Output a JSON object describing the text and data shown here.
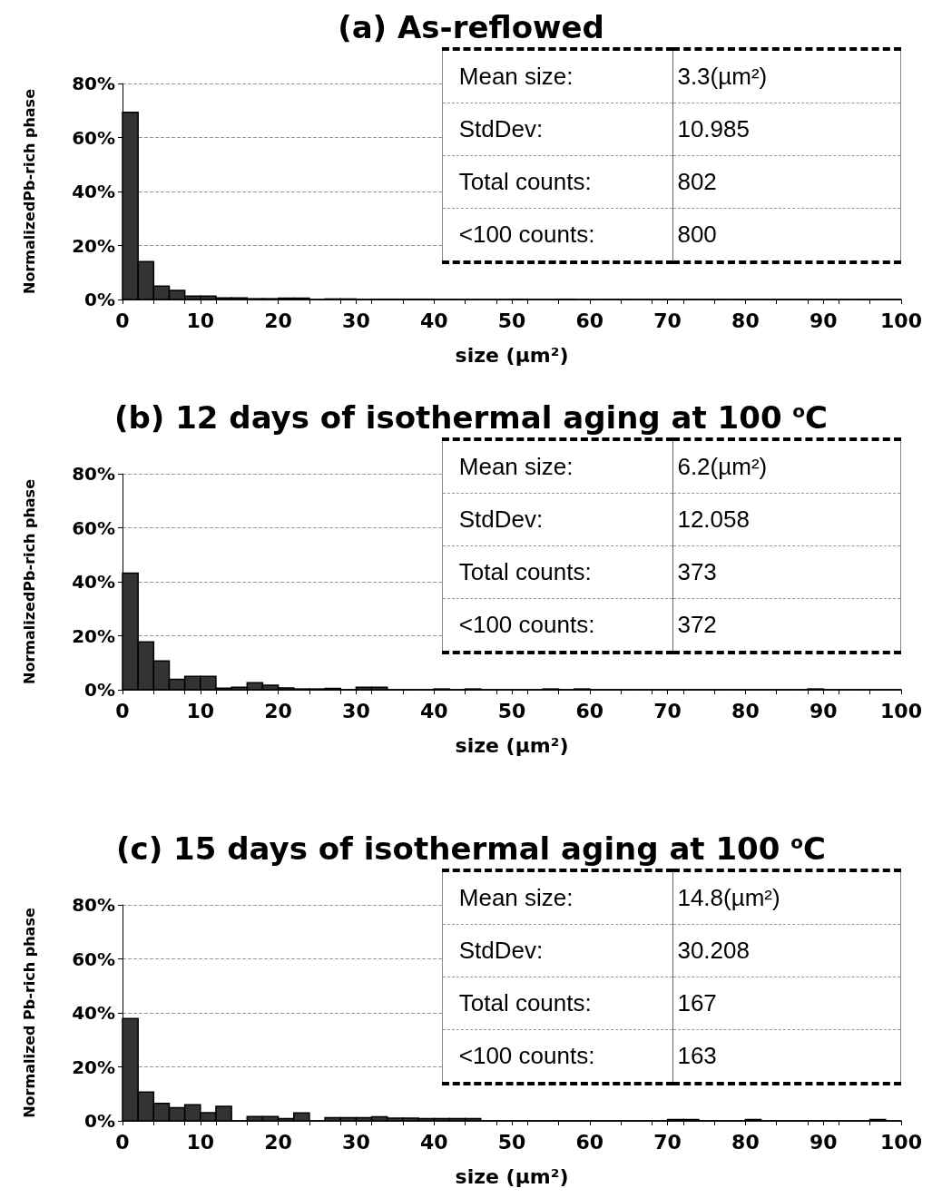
{
  "chart_data": [
    {
      "type": "histogram",
      "title": "(a) As-reflowed",
      "xlabel": "size (µm²)",
      "ylabel": "NormalizedPb-rich phase",
      "color": "#333333",
      "grid": "y",
      "bins": [
        0,
        2,
        4,
        6,
        8,
        10,
        12,
        14,
        16,
        18,
        20,
        22,
        24,
        26,
        28,
        30,
        32,
        34,
        36,
        38,
        40,
        42,
        44,
        46,
        48,
        50,
        52,
        54,
        56,
        58,
        60,
        62,
        64,
        66,
        68,
        70,
        72,
        74,
        76,
        78,
        80,
        82,
        84,
        86,
        88,
        90,
        92,
        94,
        96,
        98,
        100
      ],
      "values": [
        69.3,
        14,
        5,
        3.4,
        1.3,
        1.3,
        0.6,
        0.6,
        0.3,
        0.3,
        0.5,
        0.5,
        0,
        0.2,
        0.2,
        0,
        0.1,
        0.1,
        0.1,
        0.1,
        0,
        0,
        0,
        0,
        0,
        0.1,
        0,
        0,
        0.1,
        0,
        0,
        0,
        0,
        0,
        0,
        0,
        0,
        0,
        0,
        0,
        0,
        0,
        0,
        0,
        0,
        0,
        0,
        0,
        0,
        0
      ],
      "xlim": [
        0,
        100
      ],
      "xticks": [
        0,
        10,
        20,
        30,
        40,
        50,
        60,
        70,
        80,
        90,
        100
      ],
      "ylim": [
        0,
        80
      ],
      "yticks": [
        {
          "value": 0,
          "label": "0%"
        },
        {
          "value": 20,
          "label": "20%"
        },
        {
          "value": 40,
          "label": "40%"
        },
        {
          "value": 60,
          "label": "60%"
        },
        {
          "value": 80,
          "label": "80%"
        }
      ],
      "annotations": [
        "Mean size:",
        "3.3(µm²)",
        "StdDev:",
        "10.985",
        "Total counts:",
        "802",
        "<100 counts:",
        "800"
      ]
    },
    {
      "type": "histogram",
      "title": "(b) 12 days of isothermal aging at 100 $^{o}$C",
      "xlabel": "size (µm²)",
      "ylabel": "NormalizedPb-rich phase",
      "color": "#333333",
      "grid": "y",
      "bins": [
        0,
        2,
        4,
        6,
        8,
        10,
        12,
        14,
        16,
        18,
        20,
        22,
        24,
        26,
        28,
        30,
        32,
        34,
        36,
        38,
        40,
        42,
        44,
        46,
        48,
        50,
        52,
        54,
        56,
        58,
        60,
        62,
        64,
        66,
        68,
        70,
        72,
        74,
        76,
        78,
        80,
        82,
        84,
        86,
        88,
        90,
        92,
        94,
        96,
        98,
        100
      ],
      "values": [
        43.2,
        17.7,
        10.7,
        3.9,
        5,
        5,
        0.6,
        0.9,
        2.6,
        1.7,
        0.7,
        0.3,
        0.3,
        0.5,
        0,
        0.9,
        0.9,
        0,
        0,
        0,
        0.3,
        0,
        0.3,
        0,
        0,
        0,
        0,
        0.3,
        0,
        0.3,
        0,
        0,
        0,
        0,
        0,
        0,
        0,
        0,
        0,
        0,
        0,
        0,
        0,
        0,
        0.3,
        0,
        0,
        0,
        0,
        0
      ],
      "xlim": [
        0,
        100
      ],
      "xticks": [
        0,
        10,
        20,
        30,
        40,
        50,
        60,
        70,
        80,
        90,
        100
      ],
      "ylim": [
        0,
        80
      ],
      "yticks": [
        {
          "value": 0,
          "label": "0%"
        },
        {
          "value": 20,
          "label": "20%"
        },
        {
          "value": 40,
          "label": "40%"
        },
        {
          "value": 60,
          "label": "60%"
        },
        {
          "value": 80,
          "label": "80%"
        }
      ],
      "annotations": [
        "Mean size:",
        "6.2(µm²)",
        "StdDev:",
        "12.058",
        "Total counts:",
        "373",
        "<100 counts:",
        "372"
      ]
    },
    {
      "type": "histogram",
      "title": "(c) 15 days of isothermal aging at 100 $^{o}$C",
      "xlabel": "size (µm²)",
      "ylabel": "Normalized Pb-rich phase",
      "color": "#333333",
      "grid": "y",
      "bins": [
        0,
        2,
        4,
        6,
        8,
        10,
        12,
        14,
        16,
        18,
        20,
        22,
        24,
        26,
        28,
        30,
        32,
        34,
        36,
        38,
        40,
        42,
        44,
        46,
        48,
        50,
        52,
        54,
        56,
        58,
        60,
        62,
        64,
        66,
        68,
        70,
        72,
        74,
        76,
        78,
        80,
        82,
        84,
        86,
        88,
        90,
        92,
        94,
        96,
        98,
        100
      ],
      "values": [
        37.9,
        10.7,
        6.5,
        4.9,
        6,
        3,
        5.4,
        0,
        1.6,
        1.6,
        0.8,
        2.9,
        0,
        1.2,
        1.2,
        1.2,
        1.5,
        1,
        1,
        0.8,
        0.8,
        0.8,
        0.8,
        0,
        0,
        0,
        0,
        0,
        0,
        0,
        0,
        0,
        0,
        0,
        0,
        0.5,
        0.5,
        0,
        0,
        0,
        0.5,
        0,
        0,
        0,
        0,
        0,
        0,
        0,
        0.5,
        0
      ],
      "xlim": [
        0,
        100
      ],
      "xticks": [
        0,
        10,
        20,
        30,
        40,
        50,
        60,
        70,
        80,
        90,
        100
      ],
      "ylim": [
        0,
        80
      ],
      "yticks": [
        {
          "value": 0,
          "label": "0%"
        },
        {
          "value": 20,
          "label": "20%"
        },
        {
          "value": 40,
          "label": "40%"
        },
        {
          "value": 60,
          "label": "60%"
        },
        {
          "value": 80,
          "label": "80%"
        }
      ],
      "annotations": [
        "Mean size:",
        "14.8(µm²)",
        "StdDev:",
        "30.208",
        "Total counts:",
        "167",
        "<100 counts:",
        "163"
      ]
    }
  ]
}
